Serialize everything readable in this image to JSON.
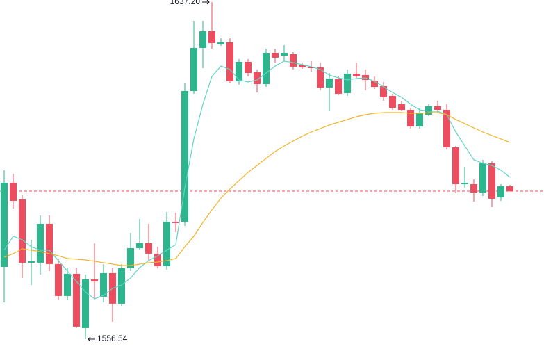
{
  "chart_data": {
    "type": "candlestick",
    "ylim": [
      1553.71,
      1637.7
    ],
    "up_color": "#2db58d",
    "down_color": "#ec4e5f",
    "open": [
      1573.84,
      1593.96,
      1589.97,
      1574.84,
      1574.84,
      1584.15,
      1574.51,
      1566.86,
      1572.18,
      1559.21,
      1570.85,
      1566.69,
      1572.34,
      1565.03,
      1573.51,
      1578.33,
      1579.49,
      1577.0,
      1574.01,
      1584.65,
      1584.65,
      1615.91,
      1626.23,
      1630.22,
      1627.06,
      1627.56,
      1618.24,
      1622.9,
      1620.4,
      1617.58,
      1625.06,
      1624.4,
      1624.73,
      1622.07,
      1621.74,
      1621.57,
      1616.75,
      1618.74,
      1615.42,
      1620.07,
      1619.74,
      1618.41,
      1617.08,
      1614.75,
      1612.75,
      1611.42,
      1607.43,
      1610.26,
      1612.26,
      1611.42,
      1602.44,
      1593.63,
      1593.63,
      1591.63,
      1598.62,
      1590.47,
      1593.13
    ],
    "high": [
      1596.96,
      1596.12,
      1591.14,
      1580.33,
      1586.15,
      1586.15,
      1575.84,
      1573.67,
      1573.67,
      1572.01,
      1579.49,
      1574.51,
      1573.67,
      1574.51,
      1581.99,
      1585.32,
      1584.15,
      1578.66,
      1586.98,
      1586.81,
      1617.74,
      1632.71,
      1632.71,
      1637.2,
      1628.55,
      1628.55,
      1623.56,
      1623.56,
      1621.07,
      1626.06,
      1626.06,
      1626.89,
      1625.23,
      1622.73,
      1623.07,
      1622.73,
      1620.24,
      1619.41,
      1621.07,
      1622.73,
      1621.07,
      1619.41,
      1618.08,
      1615.25,
      1613.59,
      1611.92,
      1611.92,
      1612.75,
      1613.59,
      1612.75,
      1602.78,
      1597.79,
      1594.79,
      1599.45,
      1599.12,
      1593.63,
      1593.46
    ],
    "low": [
      1565.36,
      1587.81,
      1571.18,
      1569.52,
      1572.01,
      1572.84,
      1565.86,
      1565.86,
      1559.21,
      1556.54,
      1566.19,
      1565.36,
      1560.7,
      1564.53,
      1572.84,
      1577.83,
      1575.34,
      1573.51,
      1573.18,
      1582.16,
      1583.65,
      1615.25,
      1621.4,
      1626.06,
      1626.72,
      1617.74,
      1617.41,
      1619.41,
      1615.58,
      1616.91,
      1622.73,
      1623.07,
      1621.07,
      1621.24,
      1620.57,
      1616.08,
      1611.09,
      1614.92,
      1614.75,
      1619.07,
      1616.08,
      1616.41,
      1613.59,
      1611.42,
      1611.09,
      1606.93,
      1606.93,
      1609.93,
      1610.76,
      1601.95,
      1591.47,
      1592.8,
      1589.47,
      1590.8,
      1588.14,
      1589.64,
      1591.8
    ],
    "close": [
      1593.96,
      1589.64,
      1574.84,
      1575.17,
      1584.15,
      1574.51,
      1566.86,
      1572.18,
      1559.54,
      1570.85,
      1570.35,
      1572.34,
      1565.03,
      1573.51,
      1578.33,
      1579.49,
      1577.0,
      1574.01,
      1584.65,
      1584.32,
      1615.91,
      1626.23,
      1630.22,
      1627.39,
      1627.56,
      1618.24,
      1622.9,
      1620.24,
      1617.58,
      1625.06,
      1623.9,
      1625.06,
      1621.74,
      1621.57,
      1621.4,
      1616.75,
      1618.91,
      1615.25,
      1620.07,
      1619.41,
      1618.58,
      1616.91,
      1614.42,
      1611.92,
      1611.42,
      1607.43,
      1610.76,
      1612.26,
      1611.42,
      1602.44,
      1593.63,
      1593.96,
      1591.63,
      1598.62,
      1590.14,
      1593.13,
      1591.97
    ],
    "series": [
      {
        "color": "#5fd3c6",
        "values": [
          1577.83,
          1581.16,
          1580.33,
          1578.66,
          1577.83,
          1577.83,
          1575.34,
          1572.84,
          1570.35,
          1567.85,
          1566.19,
          1567.02,
          1568.69,
          1569.52,
          1571.18,
          1573.67,
          1575.34,
          1576.5,
          1577.83,
          1579.16,
          1592.8,
          1604.44,
          1612.75,
          1619.41,
          1621.9,
          1621.07,
          1618.58,
          1618.08,
          1618.58,
          1620.24,
          1621.9,
          1623.07,
          1622.73,
          1622.23,
          1621.74,
          1621.07,
          1619.74,
          1619.07,
          1618.58,
          1618.91,
          1619.07,
          1618.24,
          1616.91,
          1615.58,
          1614.42,
          1612.75,
          1611.42,
          1611.09,
          1611.09,
          1610.26,
          1606.1,
          1602.78,
          1599.45,
          1598.62,
          1598.12,
          1596.96,
          1595.29
        ]
      },
      {
        "color": "#f0b429",
        "values": [
          1576.17,
          1577.0,
          1578.16,
          1577.83,
          1577.5,
          1577.0,
          1576.5,
          1575.84,
          1575.67,
          1575.5,
          1575.17,
          1574.84,
          1574.51,
          1574.17,
          1574.17,
          1574.51,
          1574.84,
          1575.0,
          1575.34,
          1575.84,
          1578.66,
          1581.16,
          1584.48,
          1587.48,
          1590.3,
          1592.47,
          1594.46,
          1596.46,
          1598.12,
          1599.78,
          1601.45,
          1602.78,
          1603.94,
          1605.11,
          1606.1,
          1606.93,
          1607.77,
          1608.43,
          1609.1,
          1609.76,
          1610.26,
          1610.59,
          1610.76,
          1610.76,
          1610.76,
          1610.59,
          1610.59,
          1610.76,
          1610.76,
          1610.26,
          1609.1,
          1608.1,
          1607.1,
          1606.1,
          1605.27,
          1604.44,
          1603.61
        ]
      }
    ],
    "last_price": {
      "value": 1591.97,
      "color": "#ec4e5f"
    },
    "annotations": [
      {
        "value": 1637.2,
        "label": "1637.20",
        "index": 23,
        "side": "left"
      },
      {
        "value": 1556.54,
        "label": "1556.54",
        "index": 9,
        "side": "right"
      }
    ]
  }
}
